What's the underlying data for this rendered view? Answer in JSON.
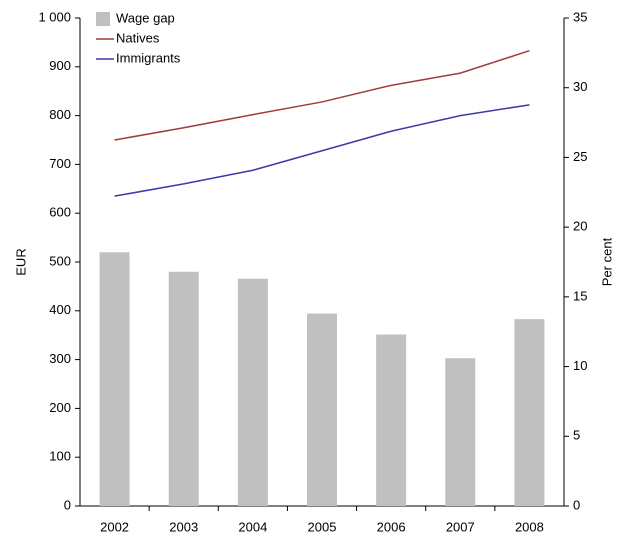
{
  "chart_data": {
    "type": "bar_line",
    "categories": [
      "2002",
      "2003",
      "2004",
      "2005",
      "2006",
      "2007",
      "2008"
    ],
    "series": [
      {
        "name": "Wage gap",
        "type": "bar",
        "axis": "y2",
        "color": "#c0c0c0",
        "values": [
          18.2,
          16.8,
          16.3,
          13.8,
          12.3,
          10.6,
          13.4
        ]
      },
      {
        "name": "Natives",
        "type": "line",
        "axis": "y",
        "color": "#a23b3b",
        "values": [
          750,
          775,
          802,
          828,
          862,
          887,
          933
        ]
      },
      {
        "name": "Immigrants",
        "type": "line",
        "axis": "y",
        "color": "#3b3ba8",
        "values": [
          635,
          660,
          688,
          728,
          768,
          800,
          822
        ]
      }
    ],
    "ylabel": "EUR",
    "y2label": "Per cent",
    "ylim": [
      0,
      1000
    ],
    "yticks": [
      0,
      100,
      200,
      300,
      400,
      500,
      600,
      700,
      800,
      900,
      {
        "value": 1000,
        "label": "1 000"
      }
    ],
    "y2lim": [
      0,
      35
    ],
    "y2ticks": [
      0,
      5,
      10,
      15,
      20,
      25,
      30,
      35
    ],
    "legend": "upper left",
    "grid": false
  }
}
